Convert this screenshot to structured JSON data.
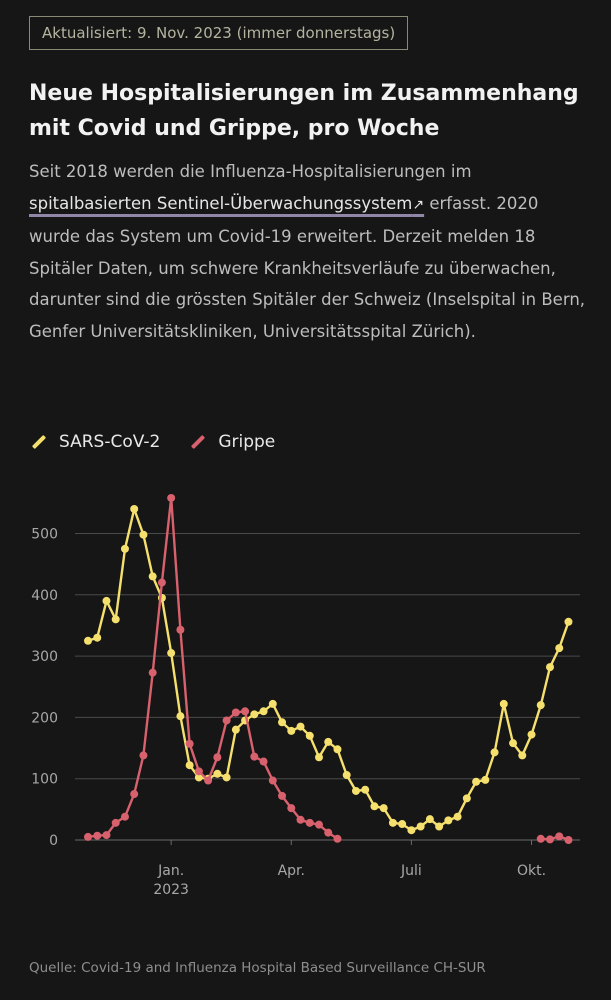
{
  "badge": "Aktualisiert: 9. Nov. 2023 (immer donnerstags)",
  "title": "Neue Hospitalisierungen im Zusammenhang mit Covid und Grippe, pro Woche",
  "description": {
    "before": "Seit 2018 werden die Influenza-Hospitalisierungen im ",
    "link": "spitalbasierten Sentinel-Überwachungssystem",
    "link_icon": "↗",
    "after": " erfasst. 2020 wurde das System um Covid-19 erweitert. Derzeit melden 18 Spitäler Daten, um schwere Krankheitsverläufe zu überwachen, darunter sind die grössten Spitäler der Schweiz (Inselspital in Bern, Genfer Universitätskliniken, Universitätsspital Zürich)."
  },
  "source": "Quelle: Covid-19 and Influenza Hospital Based Surveillance CH-SUR",
  "colors": {
    "sars": "#f5e06e",
    "grippe": "#d8616e",
    "grid": "#4a4a4a"
  },
  "chart_data": {
    "type": "line",
    "xlabel": "",
    "ylabel": "",
    "ylim": [
      0,
      560
    ],
    "yticks": [
      0,
      100,
      200,
      300,
      400,
      500
    ],
    "x_range_weeks": [
      0,
      49
    ],
    "xticks": [
      {
        "week": 9,
        "label": "Jan.",
        "sublabel": "2023"
      },
      {
        "week": 22,
        "label": "Apr.",
        "sublabel": ""
      },
      {
        "week": 35,
        "label": "Juli",
        "sublabel": ""
      },
      {
        "week": 48,
        "label": "Okt.",
        "sublabel": ""
      }
    ],
    "legend_position": "top-left",
    "grid": true,
    "series": [
      {
        "name": "SARS-CoV-2",
        "color": "#f5e06e",
        "values": [
          [
            0,
            325
          ],
          [
            1,
            330
          ],
          [
            2,
            390
          ],
          [
            3,
            360
          ],
          [
            4,
            475
          ],
          [
            5,
            540
          ],
          [
            6,
            498
          ],
          [
            7,
            430
          ],
          [
            8,
            395
          ],
          [
            9,
            305
          ],
          [
            10,
            202
          ],
          [
            11,
            122
          ],
          [
            12,
            102
          ],
          [
            13,
            100
          ],
          [
            14,
            108
          ],
          [
            15,
            102
          ],
          [
            16,
            180
          ],
          [
            17,
            195
          ],
          [
            18,
            205
          ],
          [
            19,
            210
          ],
          [
            20,
            222
          ],
          [
            21,
            192
          ],
          [
            22,
            178
          ],
          [
            23,
            185
          ],
          [
            24,
            170
          ],
          [
            25,
            135
          ],
          [
            26,
            160
          ],
          [
            27,
            148
          ],
          [
            28,
            106
          ],
          [
            29,
            80
          ],
          [
            30,
            82
          ],
          [
            31,
            55
          ],
          [
            32,
            52
          ],
          [
            33,
            28
          ],
          [
            34,
            26
          ],
          [
            35,
            16
          ],
          [
            36,
            22
          ],
          [
            37,
            34
          ],
          [
            38,
            22
          ],
          [
            39,
            32
          ],
          [
            40,
            38
          ],
          [
            41,
            68
          ],
          [
            42,
            95
          ],
          [
            43,
            98
          ],
          [
            44,
            143
          ],
          [
            45,
            222
          ],
          [
            46,
            158
          ],
          [
            47,
            138
          ],
          [
            48,
            172
          ],
          [
            49,
            220
          ],
          [
            50,
            282
          ],
          [
            51,
            313
          ],
          [
            52,
            356
          ]
        ]
      },
      {
        "name": "Grippe",
        "color": "#d8616e",
        "values": [
          [
            0,
            5
          ],
          [
            1,
            7
          ],
          [
            2,
            8
          ],
          [
            3,
            28
          ],
          [
            4,
            38
          ],
          [
            5,
            75
          ],
          [
            6,
            138
          ],
          [
            7,
            273
          ],
          [
            8,
            420
          ],
          [
            9,
            558
          ],
          [
            10,
            343
          ],
          [
            11,
            157
          ],
          [
            12,
            112
          ],
          [
            13,
            97
          ],
          [
            14,
            135
          ],
          [
            15,
            195
          ],
          [
            16,
            208
          ],
          [
            17,
            210
          ],
          [
            18,
            136
          ],
          [
            19,
            128
          ],
          [
            20,
            97
          ],
          [
            21,
            72
          ],
          [
            22,
            52
          ],
          [
            23,
            33
          ],
          [
            24,
            28
          ],
          [
            25,
            25
          ],
          [
            26,
            12
          ],
          [
            27,
            2
          ],
          [
            49,
            2
          ],
          [
            50,
            1
          ],
          [
            51,
            6
          ],
          [
            52,
            0
          ]
        ]
      }
    ]
  }
}
